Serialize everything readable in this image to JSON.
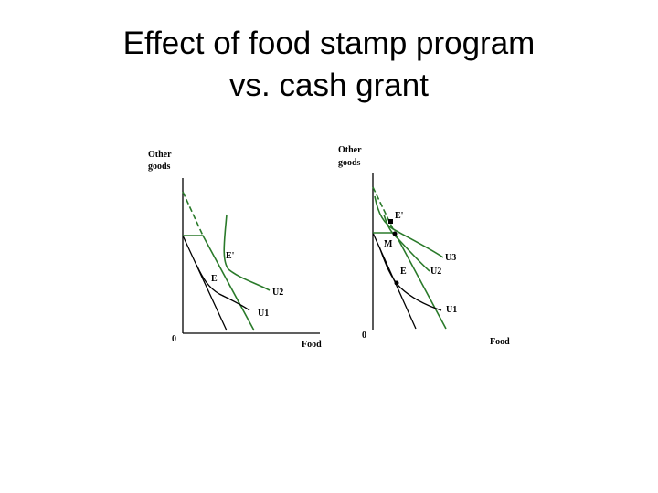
{
  "title": [
    "Effect of food stamp program",
    "vs. cash grant"
  ],
  "left_diagram": {
    "y_axis_label": [
      "Other",
      "goods"
    ],
    "origin": "0",
    "x_axis_label": "Food",
    "points": [
      "E",
      "E'"
    ],
    "curves": [
      "U1",
      "U2"
    ]
  },
  "right_diagram": {
    "y_axis_label": [
      "Other",
      "goods"
    ],
    "origin": "0",
    "x_axis_label": "Food",
    "points": [
      "E",
      "E'",
      "M"
    ],
    "curves": [
      "U1",
      "U2",
      "U3"
    ]
  }
}
